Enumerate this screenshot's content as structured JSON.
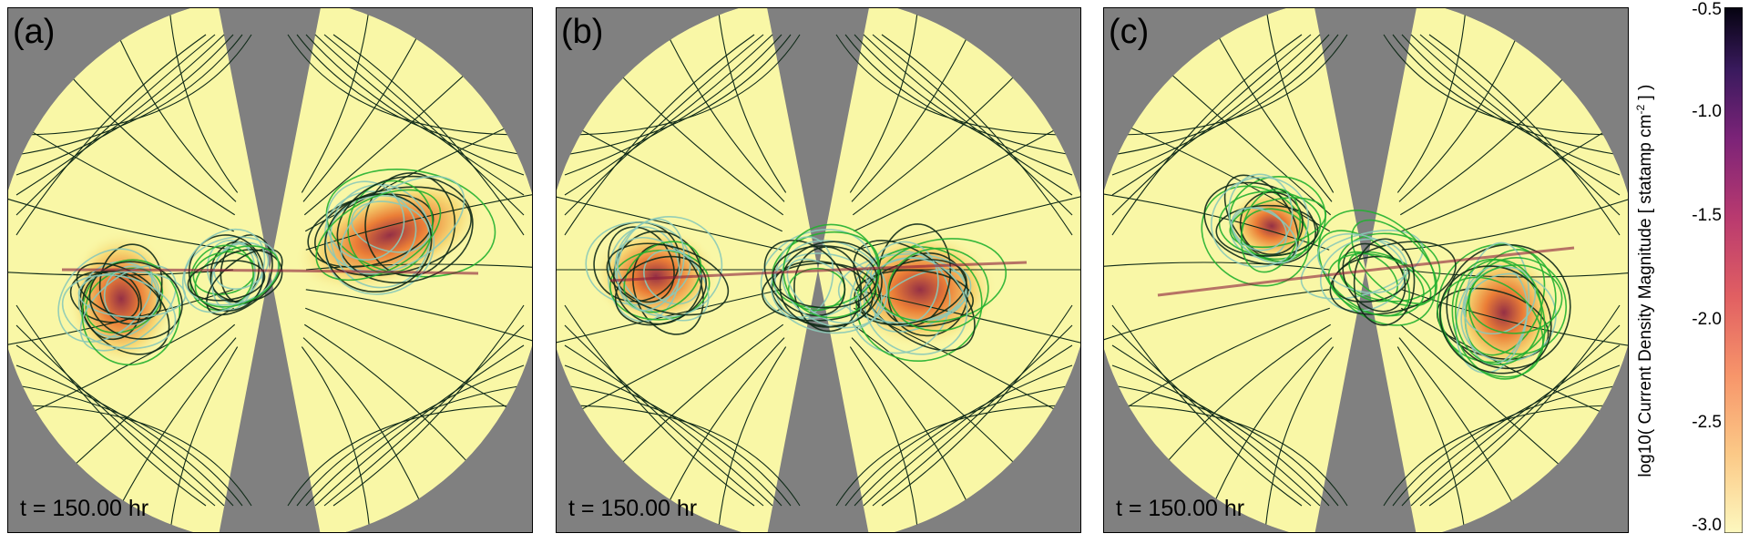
{
  "panels": [
    {
      "label": "(a)",
      "time": "t = 150.00 hr"
    },
    {
      "label": "(b)",
      "time": "t = 150.00 hr"
    },
    {
      "label": "(c)",
      "time": "t = 150.00 hr"
    }
  ],
  "colorbar": {
    "title": "log10( Current Density Magnitude  [ statamp cm",
    "title_sup": "-2",
    "title_end": " ] )",
    "ticks": [
      "-0.5",
      "-1.0",
      "-1.5",
      "-2.0",
      "-2.5",
      "-3.0"
    ]
  },
  "colors": {
    "background_gray": "#808080",
    "domain_yellow": "#f9f7a6",
    "current_low": "#f6d26a",
    "current_mid": "#e9702a",
    "current_high": "#8a1a3a",
    "fieldline_dark": "#0f2a18",
    "fieldline_cyan": "#8ac9b8",
    "fieldline_green": "#22b030"
  }
}
